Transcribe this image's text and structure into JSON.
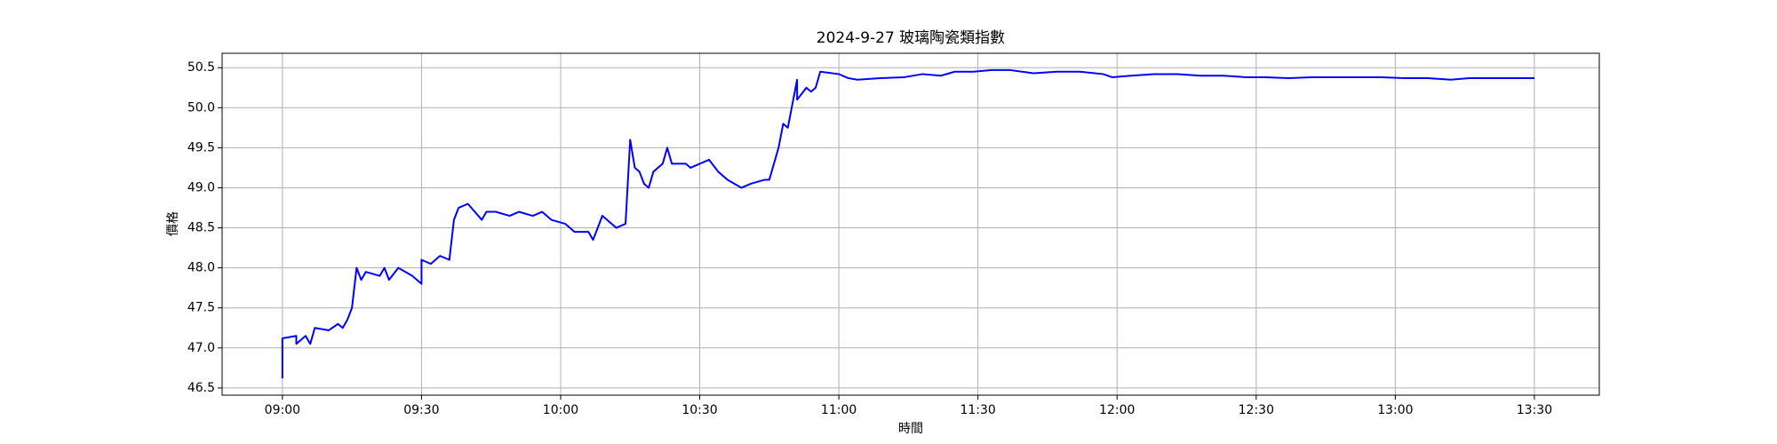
{
  "chart_data": {
    "type": "line",
    "title": "2024-9-27 玻璃陶瓷類指數",
    "x_label": "時間",
    "y_label": "價格",
    "x": [
      "09:00",
      "09:00",
      "09:03",
      "09:03",
      "09:05",
      "09:06",
      "09:07",
      "09:10",
      "09:12",
      "09:13",
      "09:14",
      "09:15",
      "09:16",
      "09:17",
      "09:18",
      "09:21",
      "09:22",
      "09:23",
      "09:25",
      "09:28",
      "09:30",
      "09:30",
      "09:32",
      "09:34",
      "09:36",
      "09:37",
      "09:38",
      "09:40",
      "09:43",
      "09:44",
      "09:46",
      "09:49",
      "09:51",
      "09:54",
      "09:56",
      "09:58",
      "10:01",
      "10:03",
      "10:06",
      "10:07",
      "10:08",
      "10:09",
      "10:11",
      "10:12",
      "10:14",
      "10:15",
      "10:16",
      "10:17",
      "10:18",
      "10:19",
      "10:20",
      "10:22",
      "10:23",
      "10:24",
      "10:27",
      "10:28",
      "10:30",
      "10:32",
      "10:34",
      "10:36",
      "10:39",
      "10:41",
      "10:44",
      "10:45",
      "10:46",
      "10:47",
      "10:48",
      "10:49",
      "10:50",
      "10:51",
      "10:51",
      "10:53",
      "10:54",
      "10:55",
      "10:56",
      "11:00",
      "11:02",
      "11:04",
      "11:09",
      "11:14",
      "11:18",
      "11:22",
      "11:25",
      "11:29",
      "11:33",
      "11:37",
      "11:42",
      "11:47",
      "11:52",
      "11:57",
      "11:59",
      "12:03",
      "12:08",
      "12:13",
      "12:18",
      "12:23",
      "12:28",
      "12:32",
      "12:37",
      "12:42",
      "12:47",
      "12:52",
      "12:57",
      "13:02",
      "13:07",
      "13:12",
      "13:16",
      "13:21",
      "13:26",
      "13:30"
    ],
    "values": [
      46.62,
      47.12,
      47.15,
      47.05,
      47.15,
      47.05,
      47.25,
      47.22,
      47.3,
      47.25,
      47.35,
      47.5,
      48.0,
      47.85,
      47.95,
      47.9,
      48.0,
      47.85,
      48.0,
      47.9,
      47.8,
      48.1,
      48.05,
      48.15,
      48.1,
      48.6,
      48.75,
      48.8,
      48.6,
      48.7,
      48.7,
      48.65,
      48.7,
      48.65,
      48.7,
      48.6,
      48.55,
      48.45,
      48.45,
      48.35,
      48.5,
      48.65,
      48.55,
      48.5,
      48.55,
      49.6,
      49.25,
      49.2,
      49.05,
      49.0,
      49.2,
      49.3,
      49.5,
      49.3,
      49.3,
      49.25,
      49.3,
      49.35,
      49.2,
      49.1,
      49.0,
      49.05,
      49.1,
      49.1,
      49.3,
      49.5,
      49.8,
      49.75,
      50.05,
      50.35,
      50.1,
      50.25,
      50.2,
      50.25,
      50.45,
      50.42,
      50.37,
      50.35,
      50.37,
      50.38,
      50.42,
      50.4,
      50.45,
      50.45,
      50.47,
      50.47,
      50.43,
      50.45,
      50.45,
      50.42,
      50.38,
      50.4,
      50.42,
      50.42,
      50.4,
      50.4,
      50.38,
      50.38,
      50.37,
      50.38,
      50.38,
      50.38,
      50.38,
      50.37,
      50.37,
      50.35,
      50.37,
      50.37,
      50.37,
      50.37
    ],
    "color": "#0000ff",
    "xlim": [
      "08:47",
      "13:44"
    ],
    "xticks": [
      "09:00",
      "09:30",
      "10:00",
      "10:30",
      "11:00",
      "11:30",
      "12:00",
      "12:30",
      "13:00",
      "13:30"
    ],
    "ylim": [
      46.41,
      50.68
    ],
    "yticks": [
      46.5,
      {
        "value": 47,
        "label": "47.0"
      },
      47.5,
      {
        "value": 48,
        "label": "48.0"
      },
      48.5,
      {
        "value": 49,
        "label": "49.0"
      },
      49.5,
      {
        "value": 50,
        "label": "50.0"
      },
      50.5
    ],
    "grid": true
  }
}
